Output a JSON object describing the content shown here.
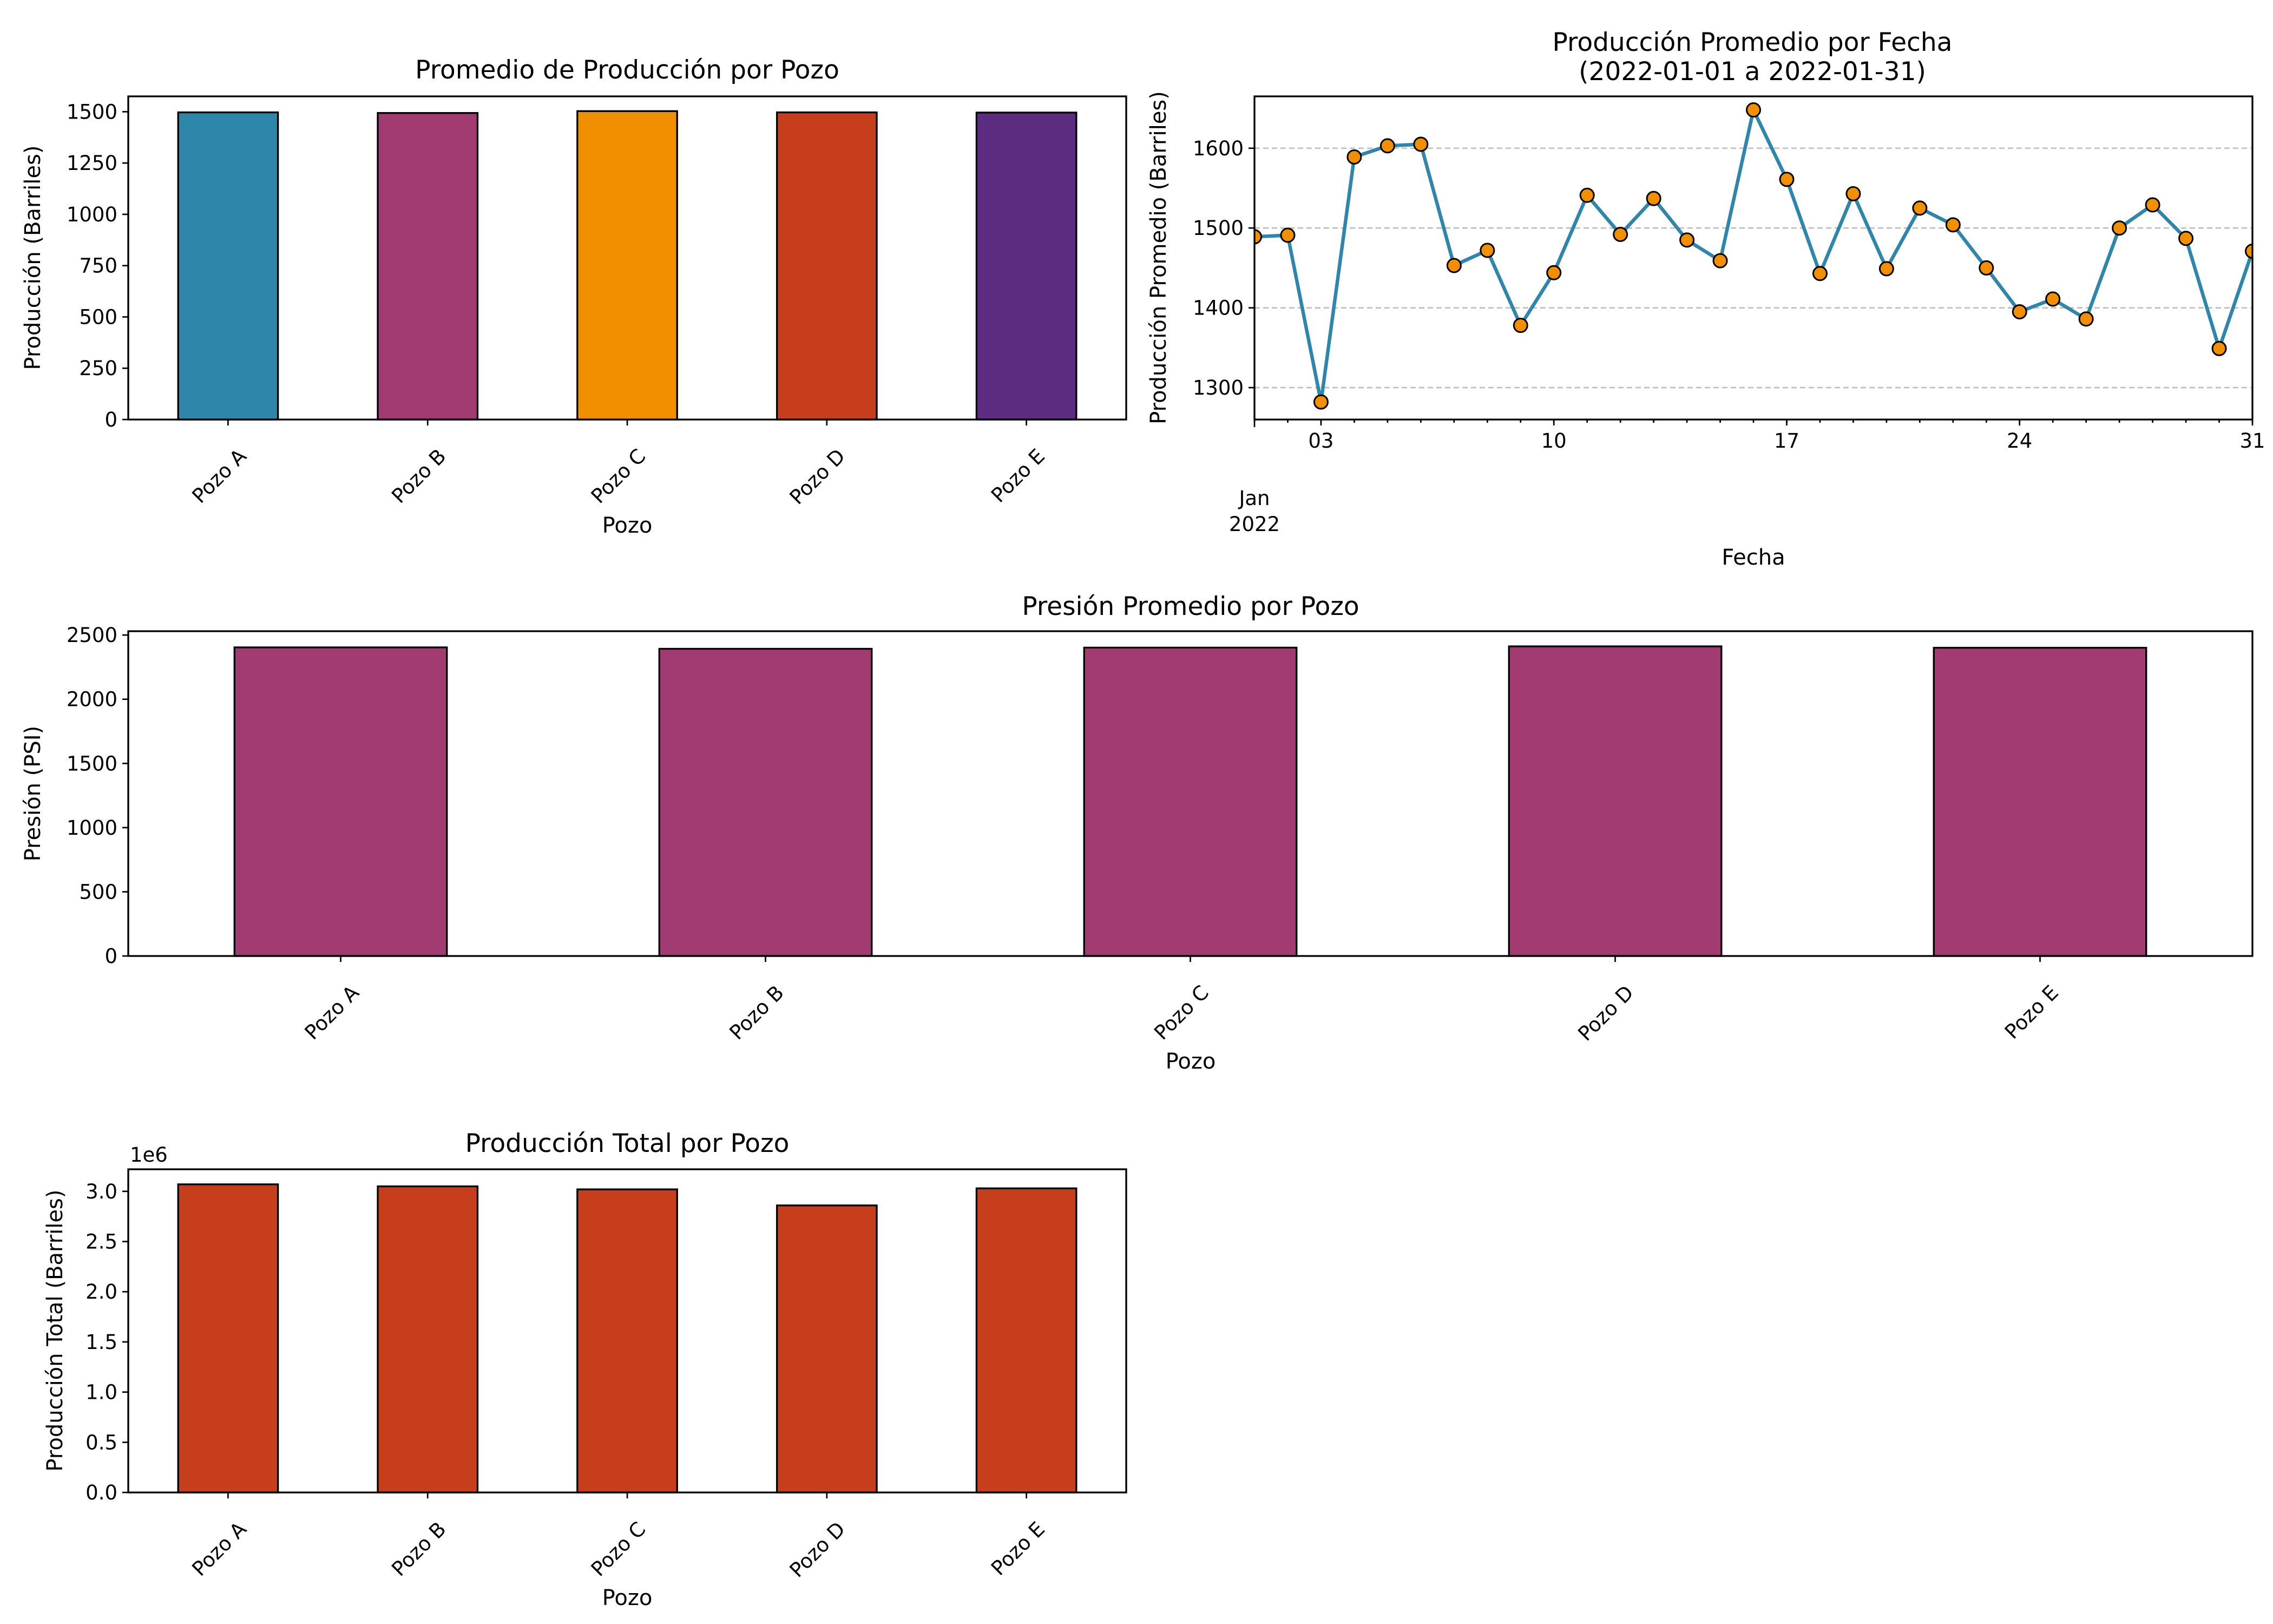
{
  "colors": {
    "blue": "#2e86ab",
    "magenta": "#a23b72",
    "orange": "#f18f01",
    "red": "#c73e1d",
    "purple": "#5b2c7f",
    "marker_fill": "#f18f01"
  },
  "chart_data": [
    {
      "id": "production-mean",
      "type": "bar",
      "title": "Promedio de Producción por Pozo",
      "xlabel": "Pozo",
      "ylabel": "Producción (Barriles)",
      "categories": [
        "Pozo A",
        "Pozo B",
        "Pozo C",
        "Pozo D",
        "Pozo E"
      ],
      "values": [
        1497,
        1494,
        1503,
        1497,
        1496
      ],
      "bar_colors": [
        "#2e86ab",
        "#a23b72",
        "#f18f01",
        "#c73e1d",
        "#5b2c7f"
      ],
      "ylim": [
        0,
        1575
      ],
      "yticks": [
        0,
        250,
        500,
        750,
        1000,
        1250,
        1500
      ],
      "ytick_labels": [
        "0",
        "250",
        "500",
        "750",
        "1000",
        "1250",
        "1500"
      ],
      "grid": false
    },
    {
      "id": "production-by-date",
      "type": "line",
      "title": "Producción Promedio por Fecha",
      "subtitle": "(2022-01-01 a 2022-01-31)",
      "xlabel": "Fecha",
      "ylabel": "Producción Promedio (Barriles)",
      "x": [
        "2022-01-01",
        "2022-01-02",
        "2022-01-03",
        "2022-01-04",
        "2022-01-05",
        "2022-01-06",
        "2022-01-07",
        "2022-01-08",
        "2022-01-09",
        "2022-01-10",
        "2022-01-11",
        "2022-01-12",
        "2022-01-13",
        "2022-01-14",
        "2022-01-15",
        "2022-01-16",
        "2022-01-17",
        "2022-01-18",
        "2022-01-19",
        "2022-01-20",
        "2022-01-21",
        "2022-01-22",
        "2022-01-23",
        "2022-01-24",
        "2022-01-25",
        "2022-01-26",
        "2022-01-27",
        "2022-01-28",
        "2022-01-29",
        "2022-01-30",
        "2022-01-31"
      ],
      "y": [
        1489,
        1491,
        1282,
        1589,
        1603,
        1605,
        1453,
        1472,
        1378,
        1444,
        1541,
        1492,
        1537,
        1485,
        1459,
        1648,
        1561,
        1443,
        1543,
        1449,
        1525,
        1504,
        1450,
        1395,
        1411,
        1386,
        1500,
        1529,
        1487,
        1349,
        1471
      ],
      "series_color": "#2e86ab",
      "marker_color": "#f18f01",
      "ylim": [
        1260,
        1665
      ],
      "yticks": [
        1300,
        1400,
        1500,
        1600
      ],
      "ytick_labels": [
        "1300",
        "1400",
        "1500",
        "1600"
      ],
      "xtick_days": [
        3,
        10,
        17,
        24,
        31
      ],
      "xtick_labels": [
        "03",
        "10",
        "17",
        "24",
        "31"
      ],
      "x_month_label": "Jan",
      "x_year_label": "2022",
      "grid": "y-dashed"
    },
    {
      "id": "pressure-mean",
      "type": "bar",
      "title": "Presión Promedio por Pozo",
      "xlabel": "Pozo",
      "ylabel": "Presión (PSI)",
      "categories": [
        "Pozo A",
        "Pozo B",
        "Pozo C",
        "Pozo D",
        "Pozo E"
      ],
      "values": [
        2404,
        2393,
        2402,
        2412,
        2401
      ],
      "bar_colors": [
        "#a23b72",
        "#a23b72",
        "#a23b72",
        "#a23b72",
        "#a23b72"
      ],
      "ylim": [
        0,
        2530
      ],
      "yticks": [
        0,
        500,
        1000,
        1500,
        2000,
        2500
      ],
      "ytick_labels": [
        "0",
        "500",
        "1000",
        "1500",
        "2000",
        "2500"
      ],
      "grid": false
    },
    {
      "id": "production-total",
      "type": "bar",
      "title": "Producción Total por Pozo",
      "xlabel": "Pozo",
      "ylabel": "Producción Total (Barriles)",
      "y_offset_label": "1e6",
      "categories": [
        "Pozo A",
        "Pozo B",
        "Pozo C",
        "Pozo D",
        "Pozo E"
      ],
      "values": [
        3.07,
        3.05,
        3.02,
        2.86,
        3.03
      ],
      "bar_colors": [
        "#c73e1d",
        "#c73e1d",
        "#c73e1d",
        "#c73e1d",
        "#c73e1d"
      ],
      "ylim": [
        0,
        3.22
      ],
      "yticks": [
        0,
        0.5,
        1,
        1.5,
        2,
        2.5,
        3
      ],
      "ytick_labels": [
        "0.0",
        "0.5",
        "1.0",
        "1.5",
        "2.0",
        "2.5",
        "3.0"
      ],
      "grid": false
    }
  ]
}
